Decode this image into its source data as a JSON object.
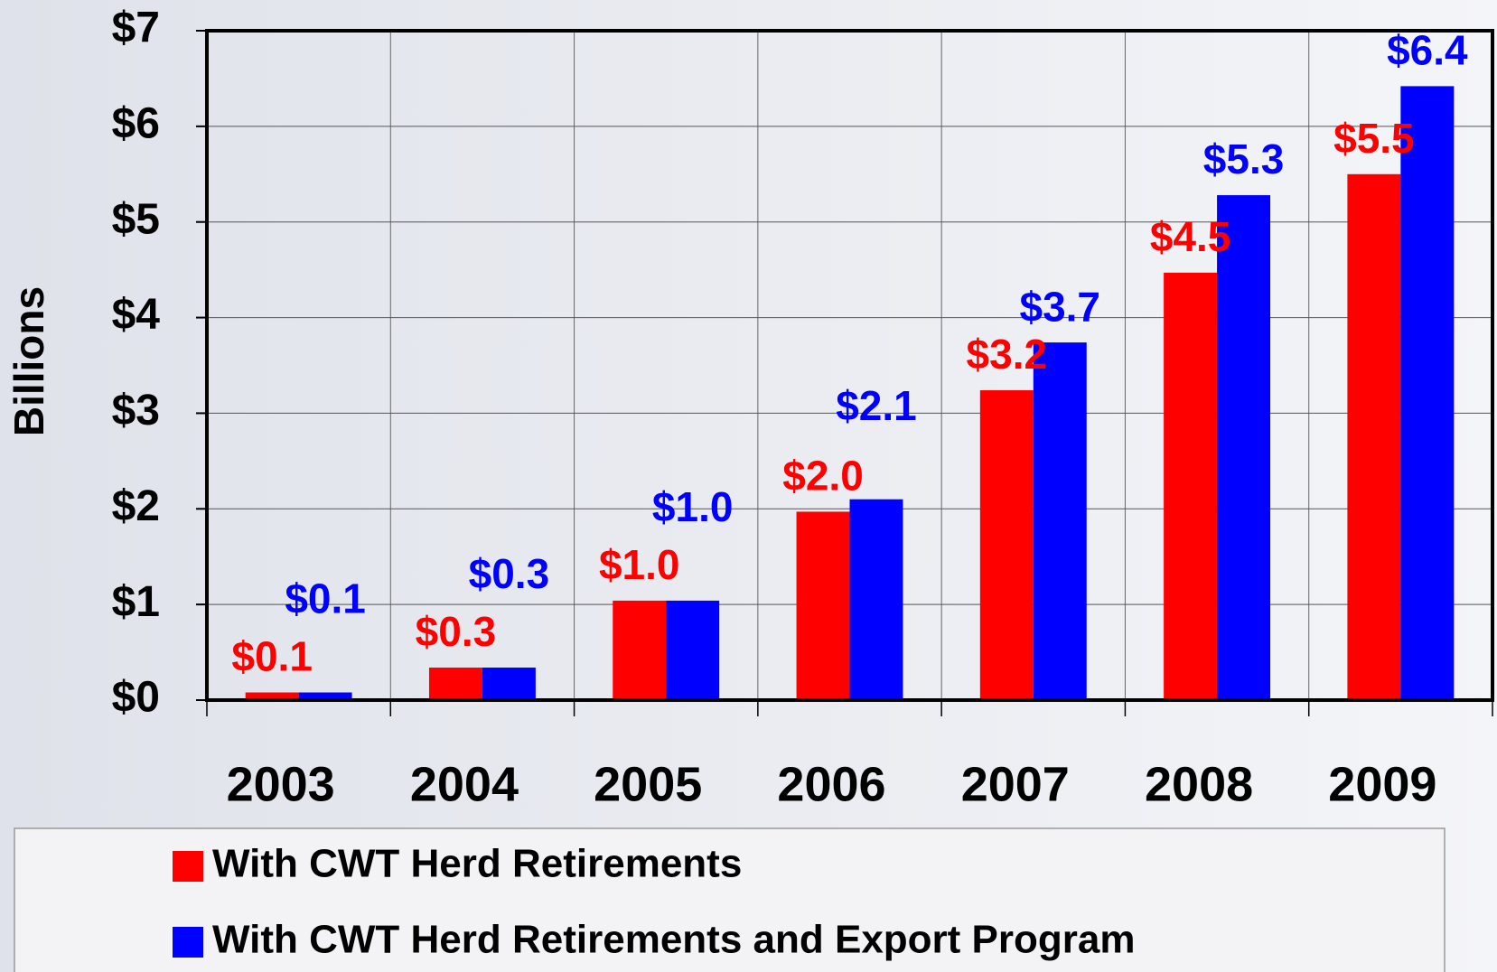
{
  "chart_data": {
    "type": "bar",
    "y_label": "Billions",
    "categories": [
      "2003",
      "2004",
      "2005",
      "2006",
      "2007",
      "2008",
      "2009"
    ],
    "series": [
      {
        "name": "With CWT Herd Retirements",
        "color": "#ff0000",
        "values": [
          0.08,
          0.34,
          1.04,
          1.97,
          3.24,
          4.47,
          5.5
        ],
        "value_labels": [
          "$0.1",
          "$0.3",
          "$1.0",
          "$2.0",
          "$3.2",
          "$4.5",
          "$5.5"
        ]
      },
      {
        "name": "With CWT Herd Retirements and Export Program",
        "color": "#0000ff",
        "values": [
          0.08,
          0.34,
          1.04,
          2.1,
          3.74,
          5.28,
          6.42
        ],
        "value_labels": [
          "$0.1",
          "$0.3",
          "$1.0",
          "$2.1",
          "$3.7",
          "$5.3",
          "$6.4"
        ]
      }
    ],
    "ylim": [
      0,
      7
    ],
    "yticks": [
      {
        "value": 0,
        "label": "$0"
      },
      {
        "value": 1,
        "label": "$1"
      },
      {
        "value": 2,
        "label": "$2"
      },
      {
        "value": 3,
        "label": "$3"
      },
      {
        "value": 4,
        "label": "$4"
      },
      {
        "value": 5,
        "label": "$5"
      },
      {
        "value": 6,
        "label": "$6"
      },
      {
        "value": 7,
        "label": "$7"
      }
    ],
    "grid": true,
    "legend": "bottom"
  }
}
